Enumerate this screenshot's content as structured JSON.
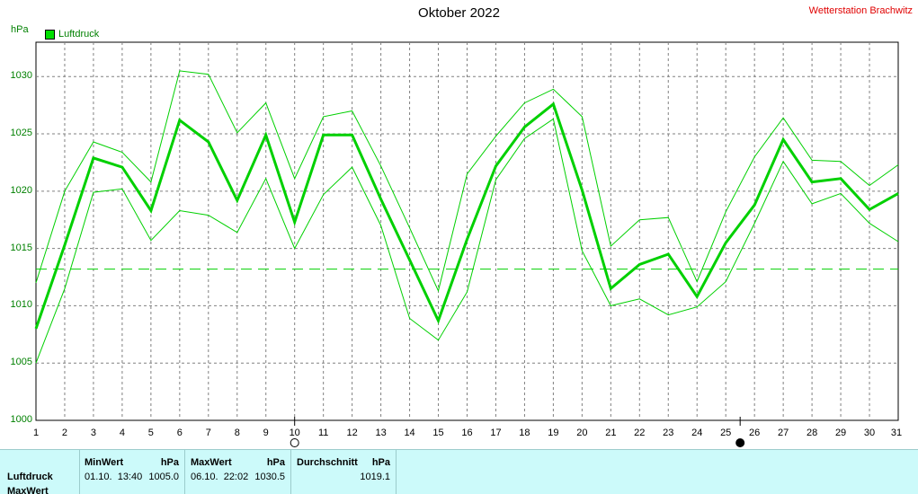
{
  "header": {
    "title": "Oktober 2022",
    "station": "Wetterstation Brachwitz",
    "unit": "hPa",
    "legend": "Luftdruck"
  },
  "table": {
    "row_label": "Luftdruck",
    "row_label_2": "MaxWert",
    "min": {
      "header": "MinWert",
      "unit": "hPa",
      "time": "01.10.  13:40",
      "value": "1005.0"
    },
    "max": {
      "header": "MaxWert",
      "unit": "hPa",
      "time": "06.10.  22:02",
      "value": "1030.5"
    },
    "avg": {
      "header": "Durchschnitt",
      "unit": "hPa",
      "value": "1019.1"
    }
  },
  "chart_data": {
    "type": "line",
    "ylim": [
      1000,
      1033
    ],
    "yticks": [
      "1000",
      "1005",
      "1010",
      "1015",
      "1020",
      "1025",
      "1030"
    ],
    "xlim": [
      1,
      31
    ],
    "categories": [
      "1",
      "2",
      "3",
      "4",
      "5",
      "6",
      "7",
      "8",
      "9",
      "10",
      "11",
      "12",
      "13",
      "14",
      "15",
      "16",
      "17",
      "18",
      "19",
      "20",
      "21",
      "22",
      "23",
      "24",
      "25",
      "26",
      "27",
      "28",
      "29",
      "30",
      "31"
    ],
    "series": [
      {
        "role": "max",
        "color": "#00d000",
        "values": [
          1012.0,
          1020.0,
          1024.3,
          1023.4,
          1020.8,
          1030.5,
          1030.2,
          1025.1,
          1027.7,
          1021.1,
          1026.5,
          1027.0,
          1022.2,
          1016.8,
          1011.3,
          1021.5,
          1024.8,
          1027.7,
          1028.9,
          1026.5,
          1015.2,
          1017.5,
          1017.7,
          1012.1,
          1018.2,
          1023.0,
          1026.4,
          1022.7,
          1022.6,
          1020.5,
          1022.3
        ]
      },
      {
        "role": "mean",
        "color": "#00d000",
        "values": [
          1008.0,
          1015.3,
          1022.9,
          1022.1,
          1018.3,
          1026.2,
          1024.3,
          1019.2,
          1024.9,
          1017.3,
          1024.9,
          1024.9,
          1019.3,
          1014.0,
          1008.7,
          1015.8,
          1022.2,
          1025.6,
          1027.6,
          1020.1,
          1011.5,
          1013.6,
          1014.5,
          1010.8,
          1015.5,
          1018.8,
          1024.5,
          1020.8,
          1021.1,
          1018.4,
          1019.8
        ]
      },
      {
        "role": "min",
        "color": "#00d000",
        "values": [
          1005.0,
          1011.5,
          1019.9,
          1020.2,
          1015.7,
          1018.3,
          1017.9,
          1016.4,
          1021.1,
          1015.0,
          1019.7,
          1022.1,
          1017.0,
          1008.9,
          1007.0,
          1011.2,
          1021.0,
          1024.6,
          1026.3,
          1014.8,
          1010.0,
          1010.6,
          1009.2,
          1009.9,
          1012.1,
          1017.2,
          1022.6,
          1018.9,
          1019.8,
          1017.2,
          1015.6
        ]
      }
    ],
    "average_line": 1013.2,
    "moon_phases": [
      {
        "day": 10,
        "phase": "full"
      },
      {
        "day": 25.5,
        "phase": "new"
      }
    ],
    "grid": true
  }
}
